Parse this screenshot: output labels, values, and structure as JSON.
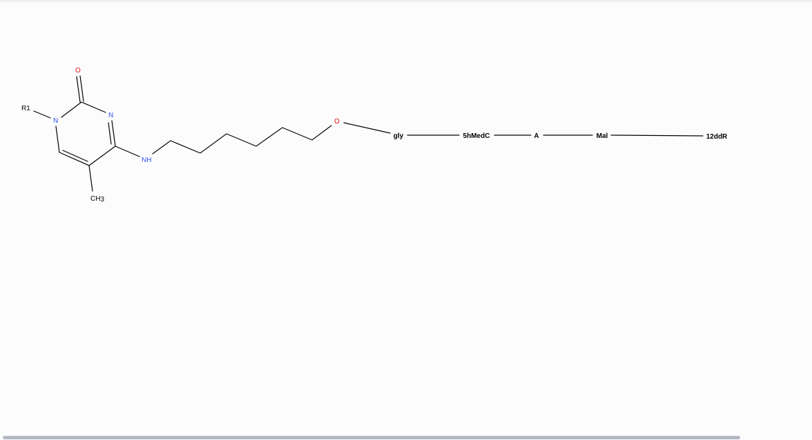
{
  "colors": {
    "bond": "#000000",
    "carbon_label": "#000000",
    "nitrogen": "#3050f8",
    "oxygen": "#e01010",
    "background": "#fcfcfc",
    "scrollbar": "#b3b8c2"
  },
  "molecule": {
    "atoms": {
      "r1": "R1",
      "n1": "N",
      "o2": "O",
      "n3": "N",
      "nh": "NH",
      "ch3_main": "CH",
      "ch3_sub": "3",
      "o_linker": "O"
    }
  },
  "sequence": {
    "residues": [
      "gly",
      "5hMedC",
      "A",
      "Mal",
      "12ddR"
    ]
  }
}
